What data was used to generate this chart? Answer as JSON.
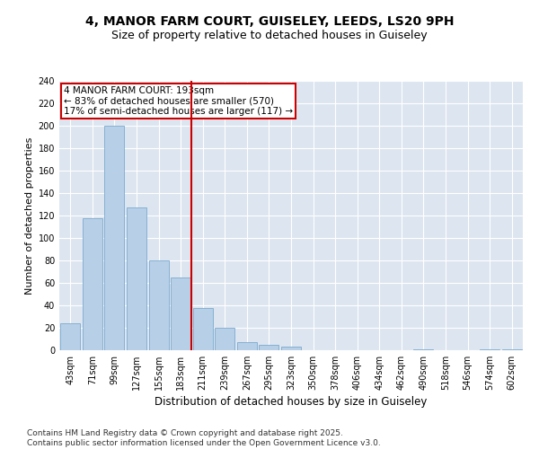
{
  "title": "4, MANOR FARM COURT, GUISELEY, LEEDS, LS20 9PH",
  "subtitle": "Size of property relative to detached houses in Guiseley",
  "xlabel": "Distribution of detached houses by size in Guiseley",
  "ylabel": "Number of detached properties",
  "bar_labels": [
    "43sqm",
    "71sqm",
    "99sqm",
    "127sqm",
    "155sqm",
    "183sqm",
    "211sqm",
    "239sqm",
    "267sqm",
    "295sqm",
    "323sqm",
    "350sqm",
    "378sqm",
    "406sqm",
    "434sqm",
    "462sqm",
    "490sqm",
    "518sqm",
    "546sqm",
    "574sqm",
    "602sqm"
  ],
  "bar_values": [
    24,
    118,
    200,
    127,
    80,
    65,
    38,
    20,
    7,
    5,
    3,
    0,
    0,
    0,
    0,
    0,
    1,
    0,
    0,
    1,
    1
  ],
  "bar_color": "#b8cfe8",
  "bar_edge_color": "#7aaace",
  "vline_x": 5.5,
  "vline_color": "#cc0000",
  "annotation_text": "4 MANOR FARM COURT: 193sqm\n← 83% of detached houses are smaller (570)\n17% of semi-detached houses are larger (117) →",
  "annotation_box_color": "#cc0000",
  "ylim": [
    0,
    240
  ],
  "yticks": [
    0,
    20,
    40,
    60,
    80,
    100,
    120,
    140,
    160,
    180,
    200,
    220,
    240
  ],
  "bg_color": "#dde6f0",
  "footer": "Contains HM Land Registry data © Crown copyright and database right 2025.\nContains public sector information licensed under the Open Government Licence v3.0.",
  "title_fontsize": 10,
  "subtitle_fontsize": 9,
  "xlabel_fontsize": 8.5,
  "ylabel_fontsize": 8,
  "tick_fontsize": 7,
  "annotation_fontsize": 7.5,
  "footer_fontsize": 6.5
}
